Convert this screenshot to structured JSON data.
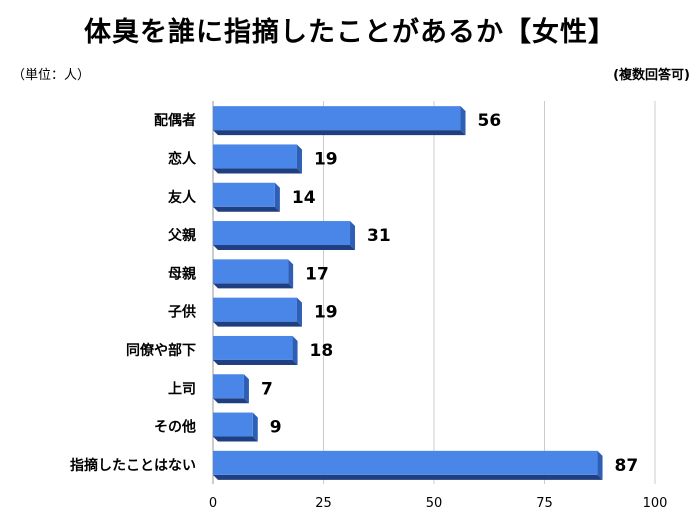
{
  "title": "体臭を誰に指摘したことがあるか【女性】",
  "unit_label": "（単位：人）",
  "note": "(複数回答可)",
  "chart_data": {
    "type": "bar",
    "orientation": "horizontal",
    "title": "体臭を誰に指摘したことがあるか【女性】",
    "categories": [
      "配偶者",
      "恋人",
      "友人",
      "父親",
      "母親",
      "子供",
      "同僚や部下",
      "上司",
      "その他",
      "指摘したことはない"
    ],
    "values": [
      56,
      19,
      14,
      31,
      17,
      19,
      18,
      7,
      9,
      87
    ],
    "xlim": [
      0,
      100
    ],
    "xticks": [
      0,
      25,
      50,
      75,
      100
    ],
    "xlabel": "",
    "ylabel": "",
    "grid": true,
    "bar_color": "#4a86e8",
    "bar_side_color": "#2f5fb5"
  }
}
